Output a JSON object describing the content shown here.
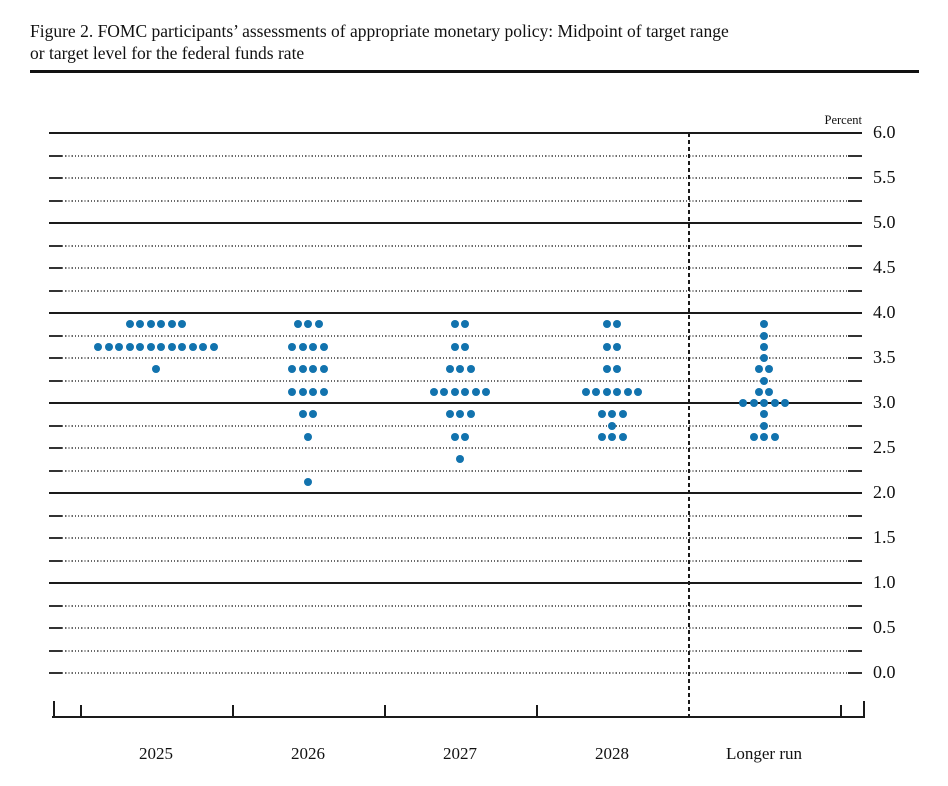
{
  "figure": {
    "title_line1": "Figure 2. FOMC participants’ assessments of appropriate monetary policy: Midpoint of target range",
    "title_line2": "or target level for the federal funds rate"
  },
  "chart_data": {
    "type": "scatter",
    "subtype": "fomc-dot-plot",
    "title": "Figure 2. FOMC participants’ assessments of appropriate monetary policy: Midpoint of target range or target level for the federal funds rate",
    "ylabel": "Percent",
    "xlabel": "",
    "ylim": [
      0.0,
      6.0
    ],
    "grid_major_step": 1.0,
    "grid_minor_step": 0.25,
    "legend_position": "none",
    "y_tick_labels": [
      "6.0",
      "5.5",
      "5.0",
      "4.5",
      "4.0",
      "3.5",
      "3.0",
      "2.5",
      "2.0",
      "1.5",
      "1.0",
      "0.5",
      "0.0"
    ],
    "categories": [
      "2025",
      "2026",
      "2027",
      "2028",
      "Longer run"
    ],
    "separator_between": [
      "2028",
      "Longer run"
    ],
    "series": [
      {
        "category": "2025",
        "dots": [
          {
            "rate": 3.875,
            "count": 6
          },
          {
            "rate": 3.625,
            "count": 12
          },
          {
            "rate": 3.375,
            "count": 1
          }
        ]
      },
      {
        "category": "2026",
        "dots": [
          {
            "rate": 3.875,
            "count": 3
          },
          {
            "rate": 3.625,
            "count": 4
          },
          {
            "rate": 3.375,
            "count": 4
          },
          {
            "rate": 3.125,
            "count": 4
          },
          {
            "rate": 2.875,
            "count": 2
          },
          {
            "rate": 2.625,
            "count": 1
          },
          {
            "rate": 2.125,
            "count": 1
          }
        ]
      },
      {
        "category": "2027",
        "dots": [
          {
            "rate": 3.875,
            "count": 2
          },
          {
            "rate": 3.625,
            "count": 2
          },
          {
            "rate": 3.375,
            "count": 3
          },
          {
            "rate": 3.125,
            "count": 6
          },
          {
            "rate": 2.875,
            "count": 3
          },
          {
            "rate": 2.625,
            "count": 2
          },
          {
            "rate": 2.375,
            "count": 1
          }
        ]
      },
      {
        "category": "2028",
        "dots": [
          {
            "rate": 3.875,
            "count": 2
          },
          {
            "rate": 3.625,
            "count": 2
          },
          {
            "rate": 3.375,
            "count": 2
          },
          {
            "rate": 3.125,
            "count": 6
          },
          {
            "rate": 2.875,
            "count": 3
          },
          {
            "rate": 2.75,
            "count": 1
          },
          {
            "rate": 2.625,
            "count": 3
          }
        ]
      },
      {
        "category": "Longer run",
        "dots": [
          {
            "rate": 3.875,
            "count": 1
          },
          {
            "rate": 3.75,
            "count": 1
          },
          {
            "rate": 3.625,
            "count": 1
          },
          {
            "rate": 3.5,
            "count": 1
          },
          {
            "rate": 3.375,
            "count": 2
          },
          {
            "rate": 3.25,
            "count": 1
          },
          {
            "rate": 3.125,
            "count": 2
          },
          {
            "rate": 3.0,
            "count": 5
          },
          {
            "rate": 2.875,
            "count": 1
          },
          {
            "rate": 2.75,
            "count": 1
          },
          {
            "rate": 2.625,
            "count": 3
          }
        ]
      }
    ],
    "colors": {
      "dot": "#1273ae",
      "solid_gridline": "#1a1a1a",
      "dotted_gridline": "#6a6a6a",
      "text": "#111111"
    }
  }
}
